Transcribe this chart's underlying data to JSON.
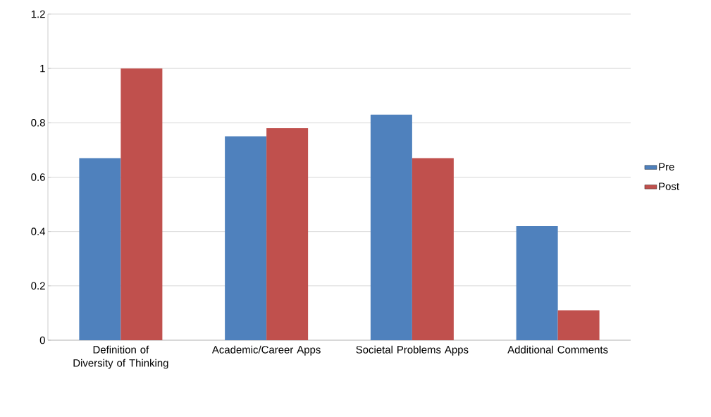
{
  "chart_data": {
    "type": "bar",
    "categories": [
      "Definition of Diversity of Thinking",
      "Academic/Career Apps",
      "Societal Problems Apps",
      "Additional Comments"
    ],
    "series": [
      {
        "name": "Pre",
        "color": "#4f81bd",
        "values": [
          0.67,
          0.75,
          0.83,
          0.42
        ]
      },
      {
        "name": "Post",
        "color": "#c0504d",
        "values": [
          1,
          0.78,
          0.67,
          0.11
        ]
      }
    ],
    "ylim": [
      0,
      1.2
    ],
    "yticks": [
      0,
      0.2,
      0.4,
      0.6,
      0.8,
      1,
      1.2
    ],
    "grid": "y",
    "legend": "right"
  }
}
